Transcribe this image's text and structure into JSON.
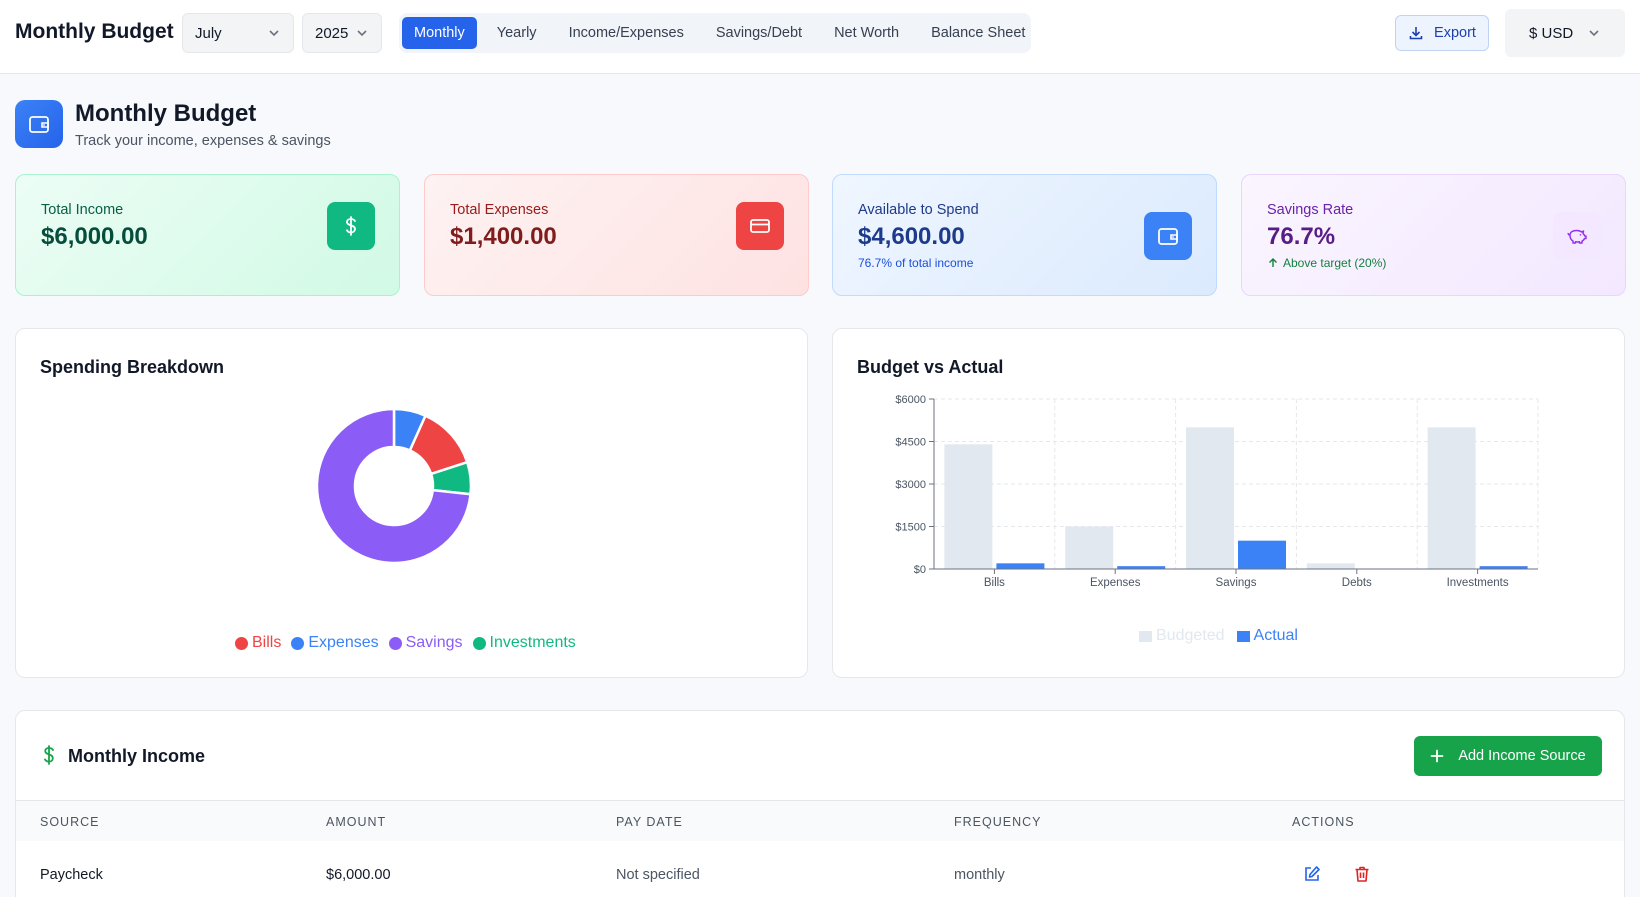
{
  "header": {
    "app_title": "Monthly Budget",
    "month_select": "July",
    "year_select": "2025",
    "tabs": [
      {
        "label": "Monthly",
        "active": true
      },
      {
        "label": "Yearly",
        "active": false
      },
      {
        "label": "Income/Expenses",
        "active": false
      },
      {
        "label": "Savings/Debt",
        "active": false
      },
      {
        "label": "Net Worth",
        "active": false
      },
      {
        "label": "Balance Sheet",
        "active": false
      }
    ],
    "export_label": "Export",
    "currency_select": "$ USD"
  },
  "page": {
    "title": "Monthly Budget",
    "subtitle": "Track your income, expenses & savings",
    "icon": "wallet-icon"
  },
  "stats": {
    "income": {
      "label": "Total Income",
      "value": "$6,000.00",
      "icon": "dollar-icon"
    },
    "expenses": {
      "label": "Total Expenses",
      "value": "$1,400.00",
      "icon": "credit-card-icon"
    },
    "available": {
      "label": "Available to Spend",
      "value": "$4,600.00",
      "note": "76.7% of total income",
      "icon": "wallet-icon"
    },
    "savings_rate": {
      "label": "Savings Rate",
      "value": "76.7%",
      "note": "Above target (20%)",
      "icon": "piggy-bank-icon"
    }
  },
  "spending": {
    "title": "Spending Breakdown",
    "colors": {
      "Bills": "#ef4444",
      "Expenses": "#3b82f6",
      "Savings": "#8b5cf6",
      "Investments": "#10b981"
    }
  },
  "budget": {
    "title": "Budget vs Actual",
    "colors": {
      "Budgeted": "#e2e8f0",
      "Actual": "#3b82f6"
    }
  },
  "chart_data": [
    {
      "type": "pie",
      "title": "Spending Breakdown",
      "categories": [
        "Bills",
        "Expenses",
        "Savings",
        "Investments"
      ],
      "values": [
        0.133,
        0.067,
        0.733,
        0.067
      ],
      "order_clockwise_from_top": [
        "Expenses",
        "Bills",
        "Investments",
        "Savings"
      ]
    },
    {
      "type": "bar",
      "title": "Budget vs Actual",
      "categories": [
        "Bills",
        "Expenses",
        "Savings",
        "Debts",
        "Investments"
      ],
      "series": [
        {
          "name": "Budgeted",
          "values": [
            4400,
            1500,
            5000,
            200,
            5000
          ]
        },
        {
          "name": "Actual",
          "values": [
            200,
            100,
            1000,
            0,
            100
          ]
        }
      ],
      "yticks": [
        "$0",
        "$1500",
        "$3000",
        "$4500",
        "$6000"
      ],
      "ylim": [
        0,
        6000
      ],
      "grid": true,
      "legend": "bottom"
    }
  ],
  "income": {
    "title": "Monthly Income",
    "add_label": "Add Income Source",
    "columns": [
      "SOURCE",
      "AMOUNT",
      "PAY DATE",
      "FREQUENCY",
      "ACTIONS"
    ],
    "rows": [
      {
        "source": "Paycheck",
        "amount": "$6,000.00",
        "pay_date": "Not specified",
        "frequency": "monthly"
      }
    ]
  }
}
